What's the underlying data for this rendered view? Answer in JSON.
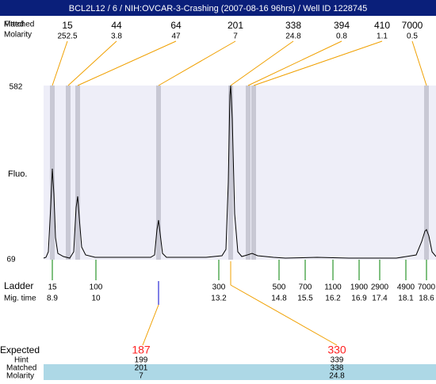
{
  "title": "BCL2L12 / 6 / NIH:OVCAR-3-Crashing (2007-08-16 96hrs) / Well ID 1228745",
  "top_labels": {
    "fitted": "Fitted",
    "matched": "Matched",
    "molarity": "Molarity"
  },
  "top_peaks": [
    {
      "size": "15",
      "molarity": "252.5"
    },
    {
      "size": "44",
      "molarity": "3.8"
    },
    {
      "size": "64",
      "molarity": "47"
    },
    {
      "size": "201",
      "molarity": "7"
    },
    {
      "size": "338",
      "molarity": "24.8"
    },
    {
      "size": "394",
      "molarity": "0.8"
    },
    {
      "size": "410",
      "molarity": "1.1"
    },
    {
      "size": "7000",
      "molarity": "0.5"
    }
  ],
  "y_axis": {
    "label": "Fluo.",
    "max": "582",
    "min": "69"
  },
  "ladder_labels": {
    "ladder": "Ladder",
    "mig_time": "Mig. time"
  },
  "ladder": [
    {
      "size": "15",
      "time": "8.9"
    },
    {
      "size": "100",
      "time": "10"
    },
    {
      "size": "300",
      "time": "13.2"
    },
    {
      "size": "500",
      "time": "14.8"
    },
    {
      "size": "700",
      "time": "15.5"
    },
    {
      "size": "1100",
      "time": "16.2"
    },
    {
      "size": "1900",
      "time": "16.9"
    },
    {
      "size": "2900",
      "time": "17.4"
    },
    {
      "size": "4900",
      "time": "18.1"
    },
    {
      "size": "7000",
      "time": "18.6"
    }
  ],
  "bottom_labels": {
    "expected": "Expected",
    "hint": "Hint",
    "matched": "Matched",
    "molarity": "Molarity"
  },
  "matches": [
    {
      "expected": "187",
      "hint": "199",
      "matched": "201",
      "molarity": "7"
    },
    {
      "expected": "330",
      "hint": "339",
      "matched": "338",
      "molarity": "24.8"
    }
  ]
}
